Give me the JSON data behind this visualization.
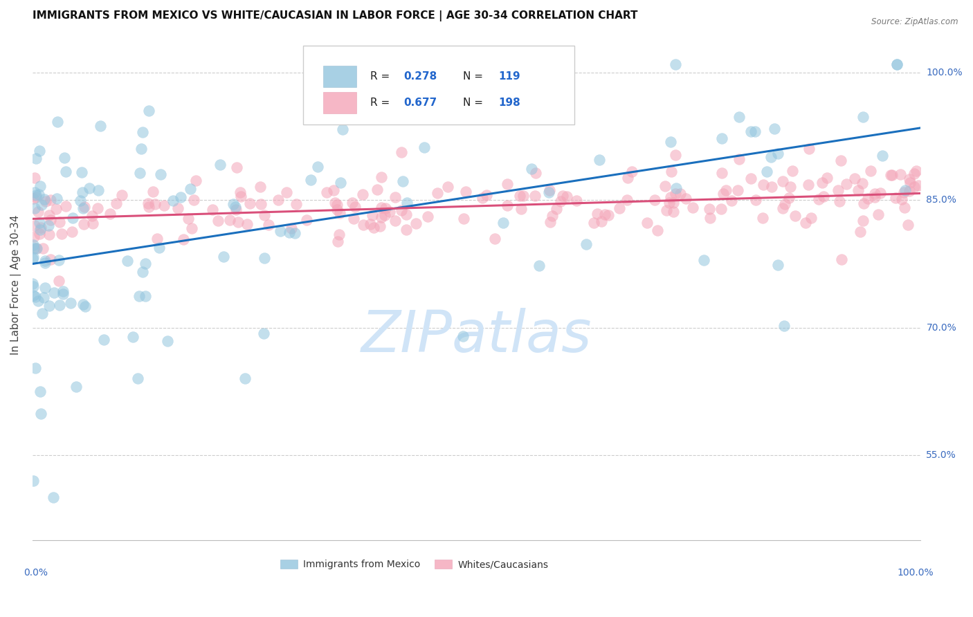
{
  "title": "IMMIGRANTS FROM MEXICO VS WHITE/CAUCASIAN IN LABOR FORCE | AGE 30-34 CORRELATION CHART",
  "source": "Source: ZipAtlas.com",
  "ylabel": "In Labor Force | Age 30-34",
  "xlim": [
    0.0,
    1.0
  ],
  "ylim": [
    0.45,
    1.05
  ],
  "yticks": [
    0.55,
    0.7,
    0.85,
    1.0
  ],
  "ytick_labels": [
    "55.0%",
    "70.0%",
    "85.0%",
    "100.0%"
  ],
  "legend1_r": "0.278",
  "legend1_n": "119",
  "legend2_r": "0.677",
  "legend2_n": "198",
  "blue_color": "#92c5de",
  "pink_color": "#f4a5b8",
  "line_blue": "#1a6fbd",
  "line_pink": "#d94f7a",
  "label_color": "#3a6bbf",
  "r_value_color": "#2266cc",
  "watermark": "ZIPatlas",
  "watermark_color": "#d0e4f7",
  "blue_line_start_y": 0.775,
  "blue_line_end_y": 0.935,
  "pink_line_start_y": 0.828,
  "pink_line_end_y": 0.858
}
